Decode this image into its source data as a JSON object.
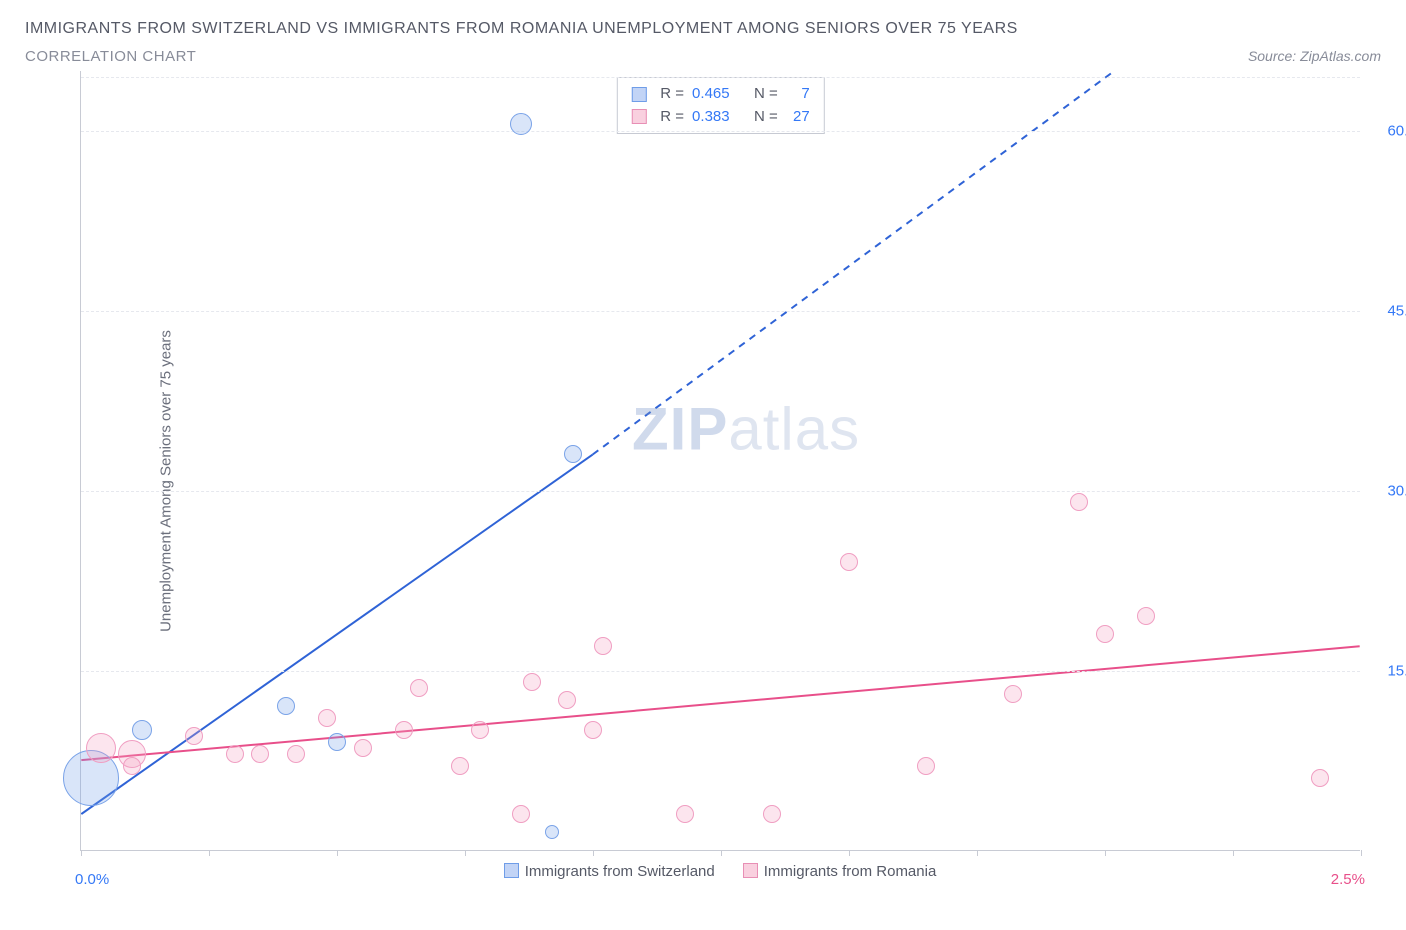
{
  "header": {
    "title": "IMMIGRANTS FROM SWITZERLAND VS IMMIGRANTS FROM ROMANIA UNEMPLOYMENT AMONG SENIORS OVER 75 YEARS",
    "subtitle": "CORRELATION CHART",
    "source": "Source: ZipAtlas.com"
  },
  "chart": {
    "type": "scatter",
    "ylabel": "Unemployment Among Seniors over 75 years",
    "xlim": [
      0,
      2.5
    ],
    "ylim": [
      0,
      65
    ],
    "xticks": [
      0.0,
      0.25,
      0.5,
      0.75,
      1.0,
      1.25,
      1.5,
      1.75,
      2.0,
      2.25,
      2.5
    ],
    "yticks": [
      15,
      30,
      45,
      60
    ],
    "ytick_labels": [
      "15.0%",
      "30.0%",
      "45.0%",
      "60.0%"
    ],
    "x_left_label": "0.0%",
    "x_right_label": "2.5%",
    "grid_color": "#e6e8ee",
    "axis_color": "#c8cbd4",
    "background": "#ffffff",
    "series": [
      {
        "name": "Immigrants from Switzerland",
        "color_fill": "rgba(120,160,235,0.28)",
        "color_stroke": "#7aa3e8",
        "css": "pt-blue",
        "R": "0.465",
        "N": "7",
        "trend": {
          "x1": 0.0,
          "y1": 3.0,
          "x2": 1.0,
          "y2": 33.0,
          "dash_to_x": 2.02,
          "dash_to_y": 65.0,
          "stroke": "#2f63d6",
          "width": 2
        },
        "points": [
          {
            "x": 0.02,
            "y": 6.0,
            "r": 28
          },
          {
            "x": 0.12,
            "y": 10.0,
            "r": 10
          },
          {
            "x": 0.4,
            "y": 12.0,
            "r": 9
          },
          {
            "x": 0.5,
            "y": 9.0,
            "r": 9
          },
          {
            "x": 0.96,
            "y": 33.0,
            "r": 9
          },
          {
            "x": 0.86,
            "y": 60.5,
            "r": 11
          },
          {
            "x": 0.92,
            "y": 1.5,
            "r": 7
          }
        ]
      },
      {
        "name": "Immigrants from Romania",
        "color_fill": "rgba(245,160,195,0.28)",
        "color_stroke": "#f09ec2",
        "css": "pt-pink",
        "R": "0.383",
        "N": "27",
        "trend": {
          "x1": 0.0,
          "y1": 7.5,
          "x2": 2.5,
          "y2": 17.0,
          "stroke": "#e84f8a",
          "width": 2
        },
        "points": [
          {
            "x": 0.04,
            "y": 8.5,
            "r": 15
          },
          {
            "x": 0.1,
            "y": 8.0,
            "r": 14
          },
          {
            "x": 0.1,
            "y": 7.0,
            "r": 9
          },
          {
            "x": 0.22,
            "y": 9.5,
            "r": 9
          },
          {
            "x": 0.3,
            "y": 8.0,
            "r": 9
          },
          {
            "x": 0.35,
            "y": 8.0,
            "r": 9
          },
          {
            "x": 0.42,
            "y": 8.0,
            "r": 9
          },
          {
            "x": 0.48,
            "y": 11.0,
            "r": 9
          },
          {
            "x": 0.55,
            "y": 8.5,
            "r": 9
          },
          {
            "x": 0.63,
            "y": 10.0,
            "r": 9
          },
          {
            "x": 0.66,
            "y": 13.5,
            "r": 9
          },
          {
            "x": 0.74,
            "y": 7.0,
            "r": 9
          },
          {
            "x": 0.78,
            "y": 10.0,
            "r": 9
          },
          {
            "x": 0.86,
            "y": 3.0,
            "r": 9
          },
          {
            "x": 0.88,
            "y": 14.0,
            "r": 9
          },
          {
            "x": 0.95,
            "y": 12.5,
            "r": 9
          },
          {
            "x": 1.0,
            "y": 10.0,
            "r": 9
          },
          {
            "x": 1.02,
            "y": 17.0,
            "r": 9
          },
          {
            "x": 1.18,
            "y": 3.0,
            "r": 9
          },
          {
            "x": 1.35,
            "y": 3.0,
            "r": 9
          },
          {
            "x": 1.5,
            "y": 24.0,
            "r": 9
          },
          {
            "x": 1.65,
            "y": 7.0,
            "r": 9
          },
          {
            "x": 1.82,
            "y": 13.0,
            "r": 9
          },
          {
            "x": 1.95,
            "y": 29.0,
            "r": 9
          },
          {
            "x": 2.0,
            "y": 18.0,
            "r": 9
          },
          {
            "x": 2.08,
            "y": 19.5,
            "r": 9
          },
          {
            "x": 2.42,
            "y": 6.0,
            "r": 9
          }
        ]
      }
    ],
    "legend_box": {
      "rows": [
        {
          "swatch": "sw-blue",
          "r_label": "R =",
          "r_val": "0.465",
          "n_label": "N =",
          "n_val": "7"
        },
        {
          "swatch": "sw-pink",
          "r_label": "R =",
          "r_val": "0.383",
          "n_label": "N =",
          "n_val": "27"
        }
      ]
    },
    "bottom_legend": {
      "a": "Immigrants from Switzerland",
      "b": "Immigrants from Romania"
    },
    "watermark": {
      "a": "ZIP",
      "b": "atlas"
    }
  }
}
